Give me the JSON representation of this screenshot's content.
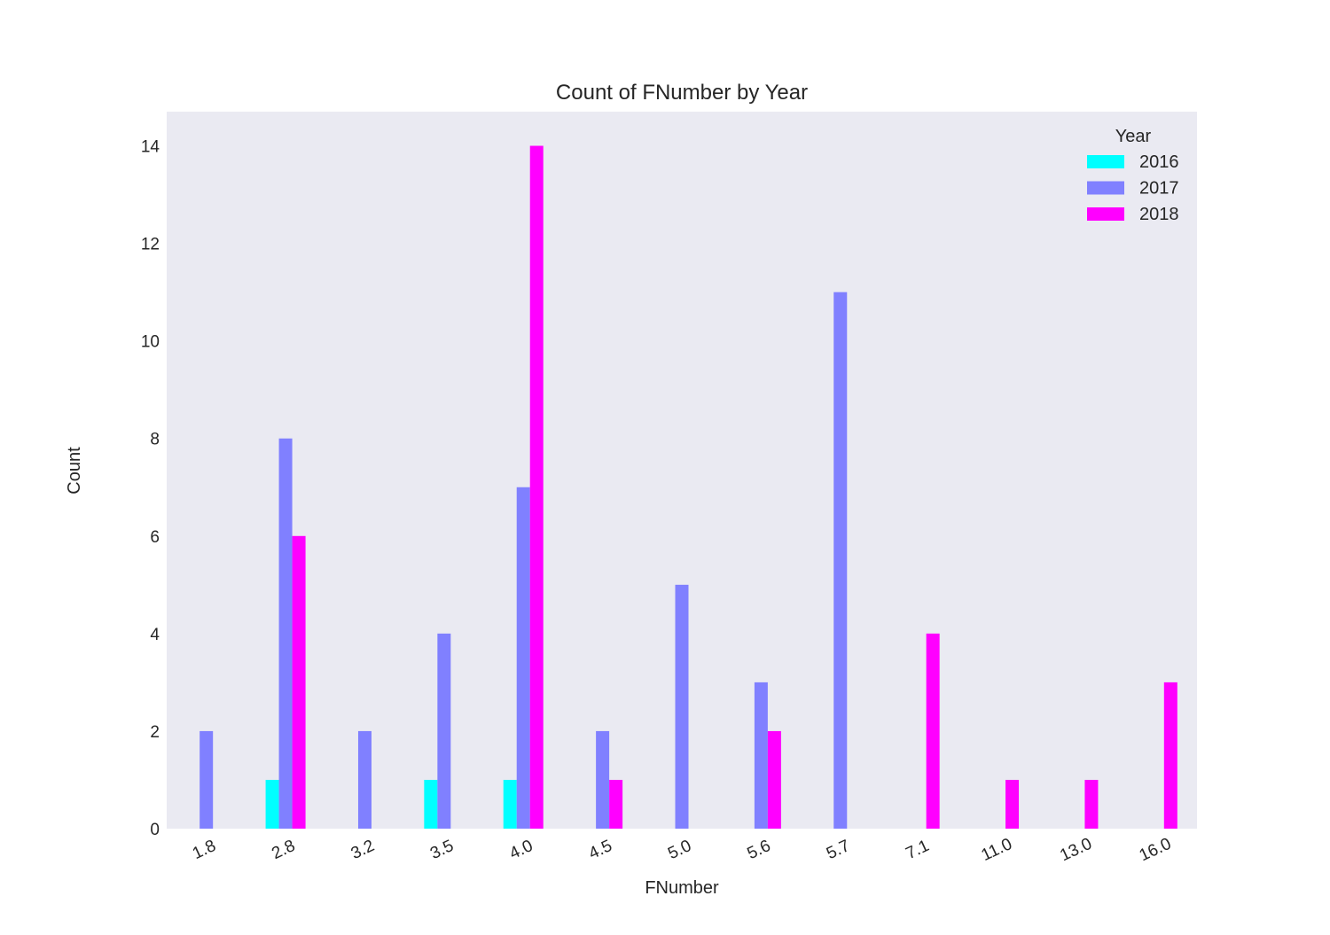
{
  "chart_data": {
    "type": "bar",
    "title": "Count of FNumber by Year",
    "xlabel": "FNumber",
    "ylabel": "Count",
    "ylim": [
      0,
      14.7
    ],
    "yticks": [
      0,
      2,
      4,
      6,
      8,
      10,
      12,
      14
    ],
    "categories": [
      "1.8",
      "2.8",
      "3.2",
      "3.5",
      "4.0",
      "4.5",
      "5.0",
      "5.6",
      "5.7",
      "7.1",
      "11.0",
      "13.0",
      "16.0"
    ],
    "series": [
      {
        "name": "2016",
        "color": "#00ffff",
        "values": [
          0,
          1,
          0,
          1,
          1,
          0,
          0,
          0,
          0,
          0,
          0,
          0,
          0
        ]
      },
      {
        "name": "2017",
        "color": "#8080ff",
        "values": [
          2,
          8,
          2,
          4,
          7,
          2,
          5,
          3,
          11,
          0,
          0,
          0,
          0
        ]
      },
      {
        "name": "2018",
        "color": "#ff00ff",
        "values": [
          0,
          6,
          0,
          0,
          14,
          1,
          0,
          2,
          0,
          4,
          1,
          1,
          3
        ]
      }
    ],
    "legend": {
      "title": "Year",
      "placement": "top-right"
    },
    "grid": false
  }
}
